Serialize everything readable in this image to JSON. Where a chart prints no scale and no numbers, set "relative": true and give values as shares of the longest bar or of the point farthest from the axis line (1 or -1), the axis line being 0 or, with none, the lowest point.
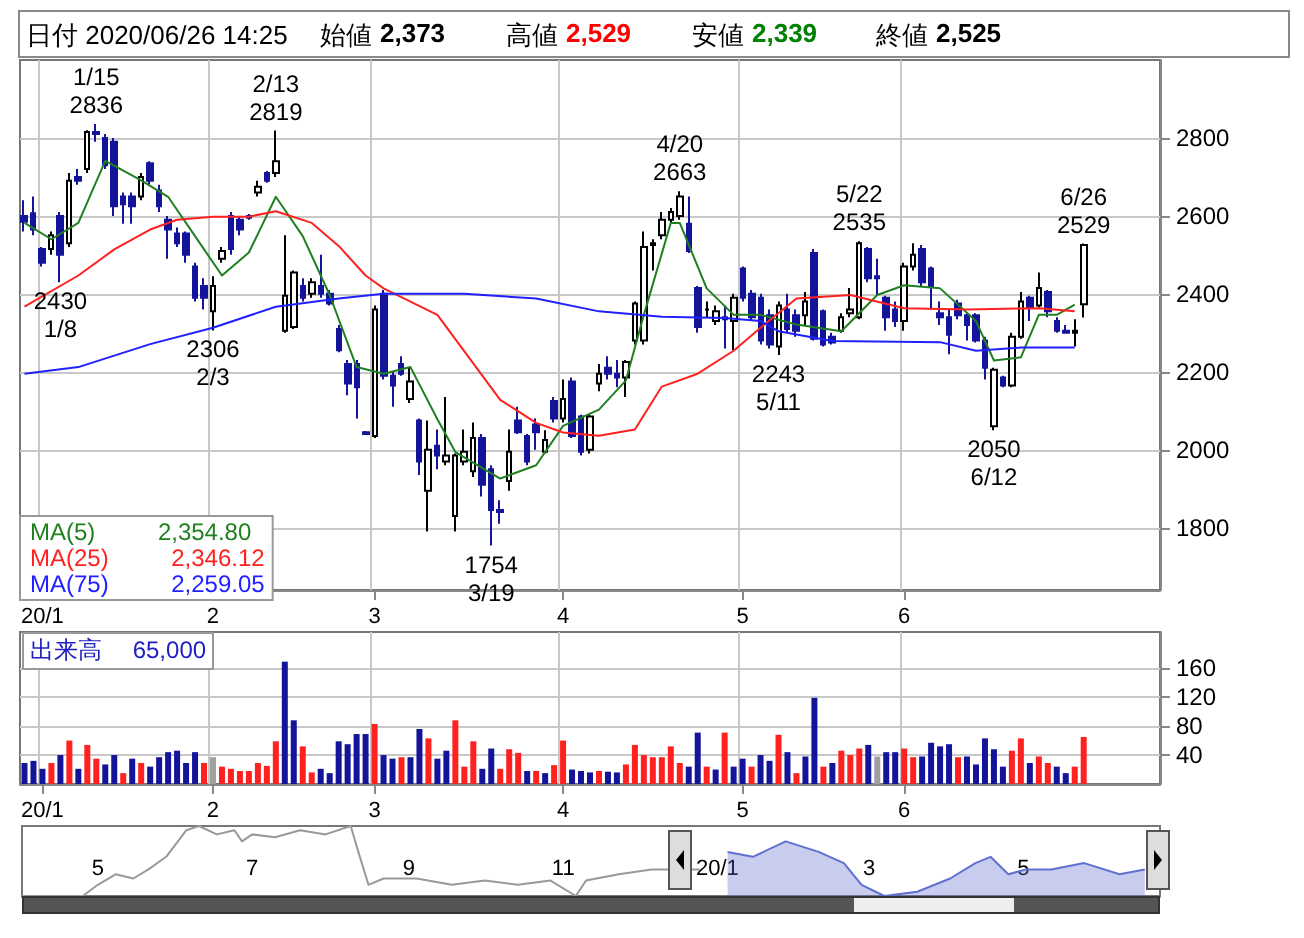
{
  "chart_data": [
    {
      "type": "candlestick",
      "title": "日付 2020/06/26 14:25",
      "annotations": [
        "始値",
        "2,373",
        "高値",
        "2,529",
        "安値",
        "2,339",
        "終値",
        "2,525",
        "2,354.80",
        "2,346.12",
        "2,259.05",
        {
          "text": "1/15\n2836",
          "y": 2836
        },
        {
          "text": "2430\n1/8",
          "y": 2430
        },
        {
          "text": "2306\n2/3",
          "y": 2306
        },
        {
          "text": "2/13\n2819",
          "y": 2819
        },
        {
          "text": "1754\n3/19",
          "y": 1754
        },
        {
          "text": "4/20\n2663",
          "y": 2663
        },
        {
          "text": "2243\n5/11",
          "y": 2243
        },
        {
          "text": "5/22\n2535",
          "y": 2535
        },
        {
          "text": "2050\n6/12",
          "y": 2050
        },
        {
          "text": "6/26\n2529",
          "y": 2529
        }
      ],
      "categories": [
        null,
        null,
        "20/1",
        null,
        null,
        null,
        null,
        null,
        null,
        null,
        null,
        null,
        null,
        null,
        null,
        null,
        null,
        null,
        null,
        null,
        null,
        "2",
        null,
        null,
        null,
        null,
        null,
        null,
        null,
        null,
        null,
        null,
        null,
        null,
        null,
        null,
        null,
        null,
        null,
        "3",
        null,
        null,
        null,
        null,
        null,
        null,
        null,
        null,
        null,
        null,
        null,
        null,
        null,
        null,
        null,
        null,
        null,
        null,
        null,
        null,
        "4",
        null,
        null,
        null,
        null,
        null,
        null,
        null,
        null,
        null,
        null,
        null,
        null,
        null,
        null,
        null,
        null,
        null,
        null,
        null,
        "5",
        null,
        null,
        null,
        null,
        null,
        null,
        null,
        null,
        null,
        null,
        null,
        null,
        null,
        null,
        null,
        null,
        null,
        "6",
        null,
        null,
        null,
        null,
        null,
        null,
        null,
        null,
        null,
        null,
        null,
        null,
        null,
        null,
        null,
        null,
        null,
        null,
        null,
        null
      ],
      "ohlc": [
        [
          2600,
          2640,
          2560,
          2585
        ],
        [
          2607,
          2650,
          2550,
          2565
        ],
        [
          2515,
          2520,
          2470,
          2480
        ],
        [
          2515,
          2560,
          2500,
          2550
        ],
        [
          2600,
          2610,
          2430,
          2500
        ],
        [
          2530,
          2710,
          2520,
          2690
        ],
        [
          2700,
          2720,
          2680,
          2690
        ],
        [
          2720,
          2820,
          2710,
          2815
        ],
        [
          2815,
          2836,
          2790,
          2810
        ],
        [
          2800,
          2810,
          2720,
          2730
        ],
        [
          2790,
          2800,
          2600,
          2625
        ],
        [
          2650,
          2660,
          2580,
          2630
        ],
        [
          2650,
          2660,
          2580,
          2625
        ],
        [
          2650,
          2710,
          2640,
          2700
        ],
        [
          2735,
          2740,
          2680,
          2690
        ],
        [
          2665,
          2680,
          2610,
          2625
        ],
        [
          2590,
          2600,
          2490,
          2565
        ],
        [
          2555,
          2570,
          2520,
          2530
        ],
        [
          2555,
          2560,
          2480,
          2500
        ],
        [
          2470,
          2480,
          2380,
          2390
        ],
        [
          2420,
          2440,
          2360,
          2390
        ],
        [
          2355,
          2445,
          2306,
          2420
        ],
        [
          2490,
          2520,
          2480,
          2510
        ],
        [
          2600,
          2610,
          2500,
          2515
        ],
        [
          2590,
          2600,
          2550,
          2565
        ],
        [
          2600,
          2605,
          2590,
          2595
        ],
        [
          2660,
          2690,
          2650,
          2675
        ],
        [
          2710,
          2715,
          2685,
          2690
        ],
        [
          2710,
          2819,
          2700,
          2740
        ],
        [
          2305,
          2550,
          2300,
          2395
        ],
        [
          2315,
          2460,
          2310,
          2455
        ],
        [
          2420,
          2440,
          2380,
          2390
        ],
        [
          2400,
          2440,
          2390,
          2430
        ],
        [
          2420,
          2500,
          2390,
          2400
        ],
        [
          2400,
          2410,
          2370,
          2375
        ],
        [
          2310,
          2320,
          2250,
          2255
        ],
        [
          2220,
          2230,
          2140,
          2170
        ],
        [
          2220,
          2230,
          2080,
          2160
        ],
        [
          2045,
          2048,
          2040,
          2040
        ],
        [
          2035,
          2370,
          2030,
          2360
        ],
        [
          2400,
          2410,
          2180,
          2190
        ],
        [
          2190,
          2200,
          2110,
          2165
        ],
        [
          2220,
          2240,
          2190,
          2195
        ],
        [
          2130,
          2210,
          2120,
          2175
        ],
        [
          2075,
          2080,
          1935,
          1970
        ],
        [
          1895,
          2075,
          1790,
          2000
        ],
        [
          2010,
          2052,
          1950,
          1985
        ],
        [
          1970,
          2135,
          1960,
          1985
        ],
        [
          1830,
          1990,
          1790,
          1985
        ],
        [
          1970,
          2052,
          1960,
          1995
        ],
        [
          1945,
          2070,
          1930,
          2030
        ],
        [
          2030,
          2040,
          1880,
          1910
        ],
        [
          1950,
          1960,
          1754,
          1845
        ],
        [
          1845,
          1870,
          1810,
          1840
        ],
        [
          1920,
          2052,
          1895,
          1995
        ],
        [
          2075,
          2110,
          2040,
          2045
        ],
        [
          2035,
          2040,
          1960,
          1970
        ],
        [
          2065,
          2080,
          2000,
          2045
        ],
        [
          1995,
          2050,
          1990,
          2025
        ],
        [
          2125,
          2135,
          2070,
          2080
        ],
        [
          2080,
          2180,
          2070,
          2130
        ],
        [
          2175,
          2185,
          2030,
          2035
        ],
        [
          2085,
          2090,
          1985,
          1995
        ],
        [
          2000,
          2090,
          1990,
          2085
        ],
        [
          2170,
          2220,
          2150,
          2195
        ],
        [
          2210,
          2240,
          2180,
          2195
        ],
        [
          2195,
          2230,
          2160,
          2185
        ],
        [
          2185,
          2230,
          2135,
          2225
        ],
        [
          2280,
          2380,
          2270,
          2375
        ],
        [
          2280,
          2560,
          2270,
          2520
        ],
        [
          2525,
          2540,
          2460,
          2530
        ],
        [
          2550,
          2610,
          2540,
          2590
        ],
        [
          2590,
          2620,
          2580,
          2610
        ],
        [
          2600,
          2663,
          2590,
          2650
        ],
        [
          2580,
          2650,
          2505,
          2510
        ],
        [
          2415,
          2420,
          2300,
          2315
        ],
        [
          2360,
          2380,
          2340,
          2360
        ],
        [
          2330,
          2370,
          2320,
          2355
        ],
        [
          2340,
          2370,
          2260,
          2335
        ],
        [
          2330,
          2400,
          2255,
          2390
        ],
        [
          2465,
          2470,
          2380,
          2390
        ],
        [
          2400,
          2410,
          2330,
          2340
        ],
        [
          2390,
          2400,
          2270,
          2280
        ],
        [
          2345,
          2360,
          2260,
          2270
        ],
        [
          2265,
          2380,
          2243,
          2370
        ],
        [
          2360,
          2400,
          2300,
          2310
        ],
        [
          2345,
          2360,
          2290,
          2305
        ],
        [
          2345,
          2405,
          2320,
          2380
        ],
        [
          2505,
          2515,
          2280,
          2285
        ],
        [
          2355,
          2360,
          2265,
          2270
        ],
        [
          2290,
          2300,
          2270,
          2275
        ],
        [
          2305,
          2350,
          2300,
          2340
        ],
        [
          2350,
          2415,
          2340,
          2360
        ],
        [
          2340,
          2535,
          2335,
          2530
        ],
        [
          2515,
          2520,
          2430,
          2440
        ],
        [
          2445,
          2490,
          2395,
          2440
        ],
        [
          2390,
          2395,
          2305,
          2340
        ],
        [
          2360,
          2380,
          2315,
          2330
        ],
        [
          2330,
          2480,
          2305,
          2470
        ],
        [
          2470,
          2530,
          2460,
          2500
        ],
        [
          2515,
          2525,
          2420,
          2430
        ],
        [
          2465,
          2470,
          2360,
          2420
        ],
        [
          2350,
          2380,
          2320,
          2340
        ],
        [
          2340,
          2360,
          2245,
          2295
        ],
        [
          2375,
          2385,
          2335,
          2345
        ],
        [
          2345,
          2350,
          2280,
          2320
        ],
        [
          2345,
          2350,
          2275,
          2280
        ],
        [
          2280,
          2290,
          2180,
          2210
        ],
        [
          2060,
          2210,
          2050,
          2205
        ],
        [
          2185,
          2190,
          2160,
          2165
        ],
        [
          2165,
          2300,
          2160,
          2290
        ],
        [
          2290,
          2405,
          2285,
          2380
        ],
        [
          2390,
          2395,
          2330,
          2365
        ],
        [
          2370,
          2455,
          2365,
          2415
        ],
        [
          2405,
          2410,
          2340,
          2355
        ],
        [
          2330,
          2340,
          2300,
          2305
        ],
        [
          2305,
          2320,
          2300,
          2300
        ],
        [
          2300,
          2335,
          2265,
          2305
        ],
        [
          2373,
          2529,
          2339,
          2525
        ]
      ],
      "series": [
        {
          "type": "line",
          "name": "MA(5)",
          "color": "#208020",
          "values": [
            2582,
            null,
            null,
            2540,
            null,
            null,
            2582,
            null,
            null,
            2741,
            null,
            null,
            null,
            2691,
            null,
            null,
            2649,
            null,
            null,
            2548,
            null,
            null,
            2447,
            null,
            null,
            2506,
            null,
            null,
            2649,
            null,
            null,
            2548,
            null,
            null,
            2397,
            null,
            null,
            2212,
            null,
            null,
            2195,
            null,
            null,
            2212,
            null,
            null,
            2078,
            null,
            1994,
            null,
            null,
            null,
            null,
            1926,
            null,
            null,
            null,
            1960,
            null,
            null,
            2061,
            null,
            null,
            null,
            2103,
            null,
            null,
            2178,
            null,
            2346,
            null,
            null,
            2582,
            2582,
            null,
            null,
            2414,
            null,
            null,
            2346,
            null,
            null,
            2346,
            null,
            null,
            null,
            2321,
            null,
            null,
            null,
            null,
            2304,
            null,
            null,
            null,
            2397,
            null,
            null,
            2422,
            null,
            null,
            null,
            2414,
            null,
            null,
            null,
            2330,
            null,
            2229,
            null,
            null,
            2237,
            null,
            2346,
            null,
            2346,
            null,
            2372,
            null
          ]
        },
        {
          "type": "line",
          "name": "MA(25)",
          "color": "#ff2020",
          "values": [
            2367,
            null,
            null,
            null,
            null,
            null,
            2447,
            null,
            null,
            null,
            2514,
            null,
            null,
            null,
            2565,
            null,
            null,
            2590,
            null,
            null,
            null,
            2598,
            null,
            null,
            null,
            2598,
            null,
            null,
            2612,
            null,
            null,
            null,
            2582,
            null,
            null,
            2523,
            null,
            null,
            2447,
            null,
            2414,
            null,
            null,
            null,
            null,
            null,
            2346,
            null,
            null,
            null,
            null,
            null,
            null,
            2128,
            null,
            null,
            null,
            2069,
            null,
            null,
            2044,
            null,
            null,
            null,
            2036,
            null,
            null,
            null,
            2052,
            null,
            null,
            2162,
            null,
            null,
            null,
            2195,
            null,
            null,
            null,
            2254,
            null,
            null,
            2313,
            null,
            null,
            null,
            2388,
            null,
            null,
            null,
            null,
            null,
            2397,
            null,
            null,
            null,
            null,
            null,
            2363,
            null,
            null,
            null,
            null,
            null,
            null,
            2360,
            null,
            null,
            null,
            null,
            null,
            null,
            null,
            2363,
            null,
            null,
            null,
            2355,
            null
          ]
        },
        {
          "type": "line",
          "name": "MA(75)",
          "color": "#2020ff",
          "values": [
            2195,
            null,
            null,
            null,
            null,
            null,
            2212,
            null,
            null,
            null,
            null,
            null,
            null,
            null,
            2271,
            null,
            null,
            null,
            null,
            null,
            null,
            2313,
            null,
            null,
            null,
            null,
            null,
            null,
            2367,
            null,
            null,
            null,
            null,
            null,
            null,
            2388,
            null,
            null,
            null,
            null,
            2400,
            null,
            null,
            null,
            null,
            null,
            null,
            null,
            null,
            2400,
            null,
            null,
            null,
            null,
            null,
            null,
            null,
            2388,
            null,
            null,
            null,
            null,
            null,
            null,
            2355,
            null,
            null,
            null,
            null,
            null,
            null,
            2341,
            null,
            null,
            null,
            null,
            null,
            null,
            2338,
            null,
            null,
            null,
            2330,
            null,
            2304,
            null,
            null,
            null,
            null,
            null,
            2279,
            null,
            null,
            null,
            null,
            null,
            null,
            null,
            null,
            null,
            null,
            null,
            2276,
            null,
            null,
            null,
            2254,
            null,
            null,
            null,
            null,
            2262,
            null,
            null,
            null,
            null,
            null,
            2262,
            null
          ]
        }
      ],
      "ylim": [
        1640,
        3000
      ],
      "yticks": [
        1800,
        2000,
        2200,
        2400,
        2600,
        2800
      ],
      "grid": true,
      "legend": "bottom left"
    },
    {
      "type": "bar",
      "title": "出来高",
      "annotations": [
        "65,000"
      ],
      "categories": [
        null,
        null,
        "20/1",
        null,
        null,
        null,
        null,
        null,
        null,
        null,
        null,
        null,
        null,
        null,
        null,
        null,
        null,
        null,
        null,
        null,
        null,
        "2",
        null,
        null,
        null,
        null,
        null,
        null,
        null,
        null,
        null,
        null,
        null,
        null,
        null,
        null,
        null,
        null,
        null,
        "3",
        null,
        null,
        null,
        null,
        null,
        null,
        null,
        null,
        null,
        null,
        null,
        null,
        null,
        null,
        null,
        null,
        null,
        null,
        null,
        null,
        "4",
        null,
        null,
        null,
        null,
        null,
        null,
        null,
        null,
        null,
        null,
        null,
        null,
        null,
        null,
        null,
        null,
        null,
        null,
        null,
        "5",
        null,
        null,
        null,
        null,
        null,
        null,
        null,
        null,
        null,
        null,
        null,
        null,
        null,
        null,
        null,
        null,
        null,
        "6",
        null,
        null,
        null,
        null,
        null,
        null,
        null,
        null,
        null,
        null,
        null,
        null,
        null,
        null,
        null,
        null,
        null,
        null,
        null,
        null
      ],
      "values": [
        29,
        32,
        21,
        29,
        40,
        60,
        21,
        54,
        35,
        27,
        40,
        15,
        35,
        29,
        24,
        37,
        44,
        46,
        29,
        44,
        29,
        37,
        24,
        21,
        18,
        18,
        29,
        25,
        59,
        169,
        88,
        52,
        16,
        21,
        15,
        59,
        55,
        69,
        69,
        83,
        40,
        35,
        37,
        37,
        76,
        63,
        35,
        46,
        88,
        24,
        59,
        21,
        49,
        21,
        48,
        43,
        18,
        18,
        15,
        26,
        60,
        20,
        18,
        16,
        18,
        17,
        16,
        27,
        54,
        40,
        37,
        37,
        52,
        29,
        24,
        71,
        24,
        20,
        71,
        24,
        35,
        24,
        40,
        32,
        68,
        44,
        15,
        38,
        119,
        24,
        29,
        46,
        40,
        49,
        54,
        38,
        44,
        44,
        49,
        37,
        38,
        57,
        52,
        55,
        37,
        38,
        27,
        63,
        48,
        24,
        46,
        63,
        29,
        38,
        29,
        24,
        15,
        24,
        65
      ],
      "colors": [
        "#14149a",
        "#14149a",
        "#14149a",
        "#ff2020",
        "#14149a",
        "#ff2020",
        "#14149a",
        "#ff2020",
        "#ff2020",
        "#14149a",
        "#14149a",
        "#ff2020",
        "#14149a",
        "#ff2020",
        "#14149a",
        "#14149a",
        "#14149a",
        "#14149a",
        "#14149a",
        "#14149a",
        "#ff2020",
        "#a0a0a0",
        "#ff2020",
        "#ff2020",
        "#ff2020",
        "#ff2020",
        "#ff2020",
        "#ff2020",
        "#ff2020",
        "#14149a",
        "#14149a",
        "#ff2020",
        "#ff2020",
        "#14149a",
        "#14149a",
        "#14149a",
        "#14149a",
        "#14149a",
        "#14149a",
        "#ff2020",
        "#14149a",
        "#14149a",
        "#ff2020",
        "#14149a",
        "#14149a",
        "#ff2020",
        "#14149a",
        "#14149a",
        "#ff2020",
        "#ff2020",
        "#ff2020",
        "#14149a",
        "#14149a",
        "#ff2020",
        "#ff2020",
        "#ff2020",
        "#14149a",
        "#ff2020",
        "#14149a",
        "#ff2020",
        "#ff2020",
        "#14149a",
        "#14149a",
        "#14149a",
        "#ff2020",
        "#14149a",
        "#14149a",
        "#ff2020",
        "#ff2020",
        "#ff2020",
        "#ff2020",
        "#ff2020",
        "#ff2020",
        "#ff2020",
        "#14149a",
        "#14149a",
        "#ff2020",
        "#14149a",
        "#ff2020",
        "#14149a",
        "#14149a",
        "#ff2020",
        "#14149a",
        "#14149a",
        "#ff2020",
        "#14149a",
        "#ff2020",
        "#14149a",
        "#14149a",
        "#ff2020",
        "#14149a",
        "#ff2020",
        "#ff2020",
        "#ff2020",
        "#14149a",
        "#a0a0a0",
        "#14149a",
        "#14149a",
        "#ff2020",
        "#ff2020",
        "#14149a",
        "#14149a",
        "#14149a",
        "#14149a",
        "#ff2020",
        "#14149a",
        "#14149a",
        "#14149a",
        "#14149a",
        "#14149a",
        "#ff2020",
        "#ff2020",
        "#14149a",
        "#ff2020",
        "#ff2020",
        "#14149a",
        "#14149a",
        "#ff2020",
        "#ff2020"
      ],
      "ylim": [
        0,
        210
      ],
      "yticks": [
        40,
        80,
        120,
        160
      ],
      "grid": true
    },
    {
      "type": "line",
      "relative": true,
      "series": [
        {
          "type": "line",
          "color": "#999999",
          "x": [
            "2019-04-01",
            "2019-04-25",
            "2019-05-01",
            "2019-05-08",
            "2019-05-15",
            "2019-05-21",
            "2019-05-28",
            "2019-06-05",
            "2019-06-10",
            "2019-06-17",
            "2019-06-24",
            "2019-06-27",
            "2019-07-01",
            "2019-07-10",
            "2019-07-20",
            "2019-07-30",
            "2019-08-09",
            "2019-08-12",
            "2019-08-16",
            "2019-08-22",
            "2019-09-04",
            "2019-09-18",
            "2019-10-01",
            "2019-10-14",
            "2019-10-27",
            "2019-11-06",
            "2019-11-10",
            "2019-11-23",
            "2019-12-06",
            "2019-12-19",
            "2019-12-25"
          ],
          "values": [
            0,
            0,
            0.16,
            0.31,
            0.25,
            0.38,
            0.56,
            0.94,
            1,
            0.88,
            0.94,
            0.78,
            0.88,
            0.84,
            0.94,
            0.88,
            1,
            0.63,
            0.16,
            0.25,
            0.25,
            0.16,
            0.22,
            0.16,
            0.22,
            0,
            0.22,
            0.31,
            0.38,
            null,
            0.38
          ]
        },
        {
          "type": "area",
          "color": "#6070d0",
          "x": [
            "2020-01-05",
            "2020-01-15",
            "2020-01-28",
            "2020-02-10",
            "2020-02-20",
            "2020-02-27",
            "2020-03-07",
            "2020-03-20",
            "2020-04-02",
            "2020-04-12",
            "2020-04-18",
            "2020-04-25",
            "2020-05-02",
            "2020-05-12",
            "2020-05-25",
            "2020-06-08",
            "2020-06-18"
          ],
          "values": [
            0.63,
            0.56,
            0.78,
            0.63,
            0.47,
            0.16,
            0,
            0.06,
            0.25,
            0.47,
            0.56,
            0.31,
            0.38,
            0.38,
            0.47,
            0.31,
            0.38
          ]
        }
      ],
      "xlim": [
        "2019-04-01",
        "2020-06-24"
      ],
      "xticks": [
        {
          "value": "2019-05-01",
          "label": "5"
        },
        {
          "value": "2019-07-01",
          "label": "7"
        },
        {
          "value": "2019-09-01",
          "label": "9"
        },
        {
          "value": "2019-11-01",
          "label": "11"
        },
        {
          "value": "2020-01-01",
          "label": "20/1"
        },
        {
          "value": "2020-03-01",
          "label": "3"
        },
        {
          "value": "2020-05-01",
          "label": "5"
        }
      ]
    }
  ]
}
